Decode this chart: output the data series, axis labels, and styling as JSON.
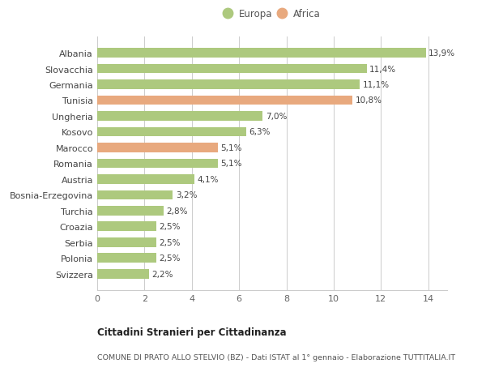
{
  "categories": [
    "Svizzera",
    "Polonia",
    "Serbia",
    "Croazia",
    "Turchia",
    "Bosnia-Erzegovina",
    "Austria",
    "Romania",
    "Marocco",
    "Kosovo",
    "Ungheria",
    "Tunisia",
    "Germania",
    "Slovacchia",
    "Albania"
  ],
  "values": [
    2.2,
    2.5,
    2.5,
    2.5,
    2.8,
    3.2,
    4.1,
    5.1,
    5.1,
    6.3,
    7.0,
    10.8,
    11.1,
    11.4,
    13.9
  ],
  "labels": [
    "2,2%",
    "2,5%",
    "2,5%",
    "2,5%",
    "2,8%",
    "3,2%",
    "4,1%",
    "5,1%",
    "5,1%",
    "6,3%",
    "7,0%",
    "10,8%",
    "11,1%",
    "11,4%",
    "13,9%"
  ],
  "colors": [
    "#adc97e",
    "#adc97e",
    "#adc97e",
    "#adc97e",
    "#adc97e",
    "#adc97e",
    "#adc97e",
    "#adc97e",
    "#e8a97e",
    "#adc97e",
    "#adc97e",
    "#e8a97e",
    "#adc97e",
    "#adc97e",
    "#adc97e"
  ],
  "europa_color": "#adc97e",
  "africa_color": "#e8a97e",
  "title_bold": "Cittadini Stranieri per Cittadinanza",
  "title_sub": "COMUNE DI PRATO ALLO STELVIO (BZ) - Dati ISTAT al 1° gennaio - Elaborazione TUTTITALIA.IT",
  "xlim": [
    0,
    14.8
  ],
  "xticks": [
    0,
    2,
    4,
    6,
    8,
    10,
    12,
    14
  ],
  "background_color": "#ffffff",
  "bar_height": 0.6,
  "label_fontsize": 7.5,
  "tick_fontsize": 8.0,
  "legend_fontsize": 8.5
}
